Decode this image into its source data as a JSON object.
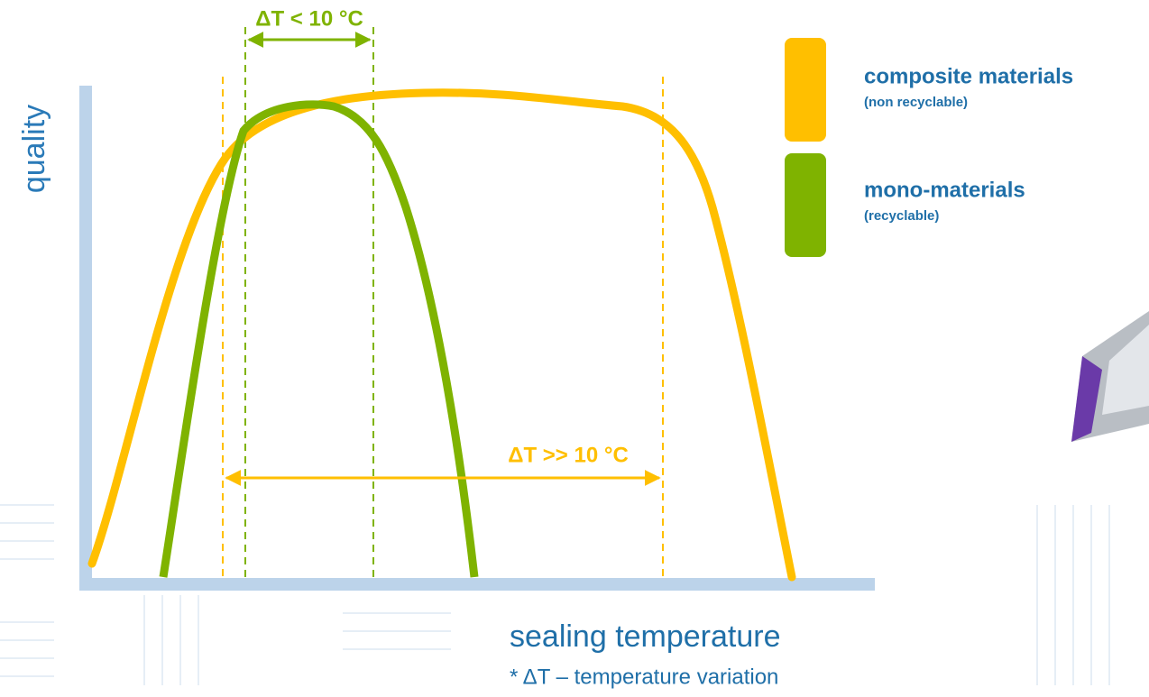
{
  "axes": {
    "y_label": "quality",
    "x_label": "sealing temperature"
  },
  "annotations": {
    "narrow_window": "ΔT < 10 °C",
    "wide_window": "ΔT >> 10 °C",
    "footnote": "* ΔT – temperature variation"
  },
  "legend": [
    {
      "label": "composite materials",
      "note": "(non recyclable)"
    },
    {
      "label": "mono-materials",
      "note": "(recyclable)"
    }
  ]
}
